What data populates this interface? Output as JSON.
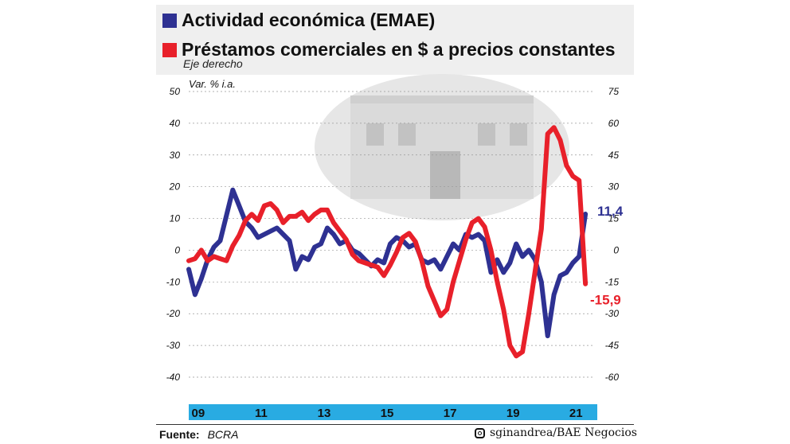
{
  "legend": {
    "emae_label": "Actividad económica (EMAE)",
    "prestamos_label": "Préstamos comerciales en $ a precios constantes",
    "prestamos_note": "Eje derecho"
  },
  "colors": {
    "emae": "#2e3192",
    "prestamos": "#e8202a",
    "year_band": "#29abe2",
    "grid": "#999999"
  },
  "chart_data": {
    "type": "line",
    "left_axis_label": "Var. % i.a.",
    "left_axis": {
      "ylim": [
        -40,
        50
      ],
      "ticks": [
        "50",
        "40",
        "30",
        "20",
        "10",
        "0",
        "-10",
        "-20",
        "-30",
        "-40"
      ]
    },
    "right_axis": {
      "ylim": [
        -60,
        75
      ],
      "ticks": [
        "75",
        "60",
        "45",
        "30",
        "15",
        "0",
        "-15",
        "-30",
        "-45",
        "-60"
      ]
    },
    "x_range": [
      2008.7,
      2021.6
    ],
    "x_ticks": [
      {
        "x": 2009,
        "label": "09"
      },
      {
        "x": 2011,
        "label": "11"
      },
      {
        "x": 2013,
        "label": "13"
      },
      {
        "x": 2015,
        "label": "15"
      },
      {
        "x": 2017,
        "label": "17"
      },
      {
        "x": 2019,
        "label": "19"
      },
      {
        "x": 2021,
        "label": "21"
      }
    ],
    "gridlines": true,
    "series": [
      {
        "name": "Actividad económica (EMAE)",
        "axis": "left",
        "end_label": "11,4",
        "points": [
          [
            2008.7,
            -6
          ],
          [
            2008.9,
            -14
          ],
          [
            2009.1,
            -9
          ],
          [
            2009.3,
            -3
          ],
          [
            2009.5,
            1
          ],
          [
            2009.7,
            3
          ],
          [
            2009.9,
            11
          ],
          [
            2010.1,
            19
          ],
          [
            2010.3,
            14
          ],
          [
            2010.5,
            9
          ],
          [
            2010.7,
            7
          ],
          [
            2010.9,
            4
          ],
          [
            2011.1,
            5
          ],
          [
            2011.3,
            6
          ],
          [
            2011.5,
            7
          ],
          [
            2011.7,
            5
          ],
          [
            2011.9,
            3
          ],
          [
            2012.1,
            -6
          ],
          [
            2012.3,
            -2
          ],
          [
            2012.5,
            -3
          ],
          [
            2012.7,
            1
          ],
          [
            2012.9,
            2
          ],
          [
            2013.1,
            7
          ],
          [
            2013.3,
            5
          ],
          [
            2013.5,
            2
          ],
          [
            2013.7,
            3
          ],
          [
            2013.9,
            0
          ],
          [
            2014.1,
            -1
          ],
          [
            2014.3,
            -3
          ],
          [
            2014.5,
            -5
          ],
          [
            2014.7,
            -3
          ],
          [
            2014.9,
            -4
          ],
          [
            2015.1,
            2
          ],
          [
            2015.3,
            4
          ],
          [
            2015.5,
            3
          ],
          [
            2015.7,
            1
          ],
          [
            2015.9,
            2
          ],
          [
            2016.1,
            -3
          ],
          [
            2016.3,
            -4
          ],
          [
            2016.5,
            -3
          ],
          [
            2016.7,
            -6
          ],
          [
            2016.9,
            -2
          ],
          [
            2017.1,
            2
          ],
          [
            2017.3,
            0
          ],
          [
            2017.5,
            5
          ],
          [
            2017.7,
            4
          ],
          [
            2017.9,
            5
          ],
          [
            2018.1,
            3
          ],
          [
            2018.3,
            -7
          ],
          [
            2018.5,
            -3
          ],
          [
            2018.7,
            -7
          ],
          [
            2018.9,
            -4
          ],
          [
            2019.1,
            2
          ],
          [
            2019.3,
            -2
          ],
          [
            2019.5,
            0
          ],
          [
            2019.7,
            -3
          ],
          [
            2019.9,
            -10
          ],
          [
            2020.1,
            -27
          ],
          [
            2020.3,
            -14
          ],
          [
            2020.5,
            -8
          ],
          [
            2020.7,
            -7
          ],
          [
            2020.9,
            -4
          ],
          [
            2021.1,
            -2
          ],
          [
            2021.3,
            11.4
          ]
        ]
      },
      {
        "name": "Préstamos comerciales en $ a precios constantes",
        "axis": "right",
        "end_label": "-15,9",
        "points": [
          [
            2008.7,
            -5
          ],
          [
            2008.9,
            -4
          ],
          [
            2009.1,
            0
          ],
          [
            2009.3,
            -5
          ],
          [
            2009.5,
            -3
          ],
          [
            2009.7,
            -4
          ],
          [
            2009.9,
            -5
          ],
          [
            2010.1,
            2
          ],
          [
            2010.3,
            7
          ],
          [
            2010.5,
            14
          ],
          [
            2010.7,
            17
          ],
          [
            2010.9,
            14
          ],
          [
            2011.1,
            21
          ],
          [
            2011.3,
            22
          ],
          [
            2011.5,
            19
          ],
          [
            2011.7,
            13
          ],
          [
            2011.9,
            16
          ],
          [
            2012.1,
            16
          ],
          [
            2012.3,
            18
          ],
          [
            2012.5,
            14
          ],
          [
            2012.7,
            17
          ],
          [
            2012.9,
            19
          ],
          [
            2013.1,
            19
          ],
          [
            2013.3,
            13
          ],
          [
            2013.5,
            9
          ],
          [
            2013.7,
            5
          ],
          [
            2013.9,
            -2
          ],
          [
            2014.1,
            -5
          ],
          [
            2014.3,
            -6
          ],
          [
            2014.5,
            -7
          ],
          [
            2014.7,
            -8
          ],
          [
            2014.9,
            -12
          ],
          [
            2015.1,
            -7
          ],
          [
            2015.3,
            -1
          ],
          [
            2015.5,
            6
          ],
          [
            2015.7,
            8
          ],
          [
            2015.9,
            4
          ],
          [
            2016.1,
            -5
          ],
          [
            2016.3,
            -17
          ],
          [
            2016.5,
            -24
          ],
          [
            2016.7,
            -31
          ],
          [
            2016.9,
            -28
          ],
          [
            2017.1,
            -15
          ],
          [
            2017.3,
            -5
          ],
          [
            2017.5,
            5
          ],
          [
            2017.7,
            13
          ],
          [
            2017.9,
            15
          ],
          [
            2018.1,
            11
          ],
          [
            2018.3,
            0
          ],
          [
            2018.5,
            -15
          ],
          [
            2018.7,
            -28
          ],
          [
            2018.9,
            -45
          ],
          [
            2019.1,
            -50
          ],
          [
            2019.3,
            -48
          ],
          [
            2019.5,
            -30
          ],
          [
            2019.7,
            -10
          ],
          [
            2019.9,
            10
          ],
          [
            2020.1,
            55
          ],
          [
            2020.3,
            58
          ],
          [
            2020.5,
            52
          ],
          [
            2020.7,
            40
          ],
          [
            2020.9,
            35
          ],
          [
            2021.1,
            33
          ],
          [
            2021.3,
            -15.9
          ]
        ]
      }
    ]
  },
  "footer": {
    "source_label": "Fuente:",
    "source_value": "BCRA",
    "credit": "sginandrea/BAE Negocios"
  }
}
